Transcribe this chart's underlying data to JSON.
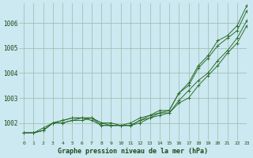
{
  "bg_color": "#cce8f0",
  "grid_color": "#99bbaa",
  "line_color": "#2d6e2d",
  "text_color": "#1a4a1a",
  "xlabel": "Graphe pression niveau de la mer (hPa)",
  "ylim": [
    1001.3,
    1006.8
  ],
  "xlim": [
    -0.5,
    23
  ],
  "yticks": [
    1002,
    1003,
    1004,
    1005,
    1006
  ],
  "xticks": [
    0,
    1,
    2,
    3,
    4,
    5,
    6,
    7,
    8,
    9,
    10,
    11,
    12,
    13,
    14,
    15,
    16,
    17,
    18,
    19,
    20,
    21,
    22,
    23
  ],
  "series": [
    [
      1001.6,
      1001.6,
      1001.7,
      1002.0,
      1002.0,
      1002.1,
      1002.1,
      1002.2,
      1002.0,
      1001.9,
      1001.9,
      1001.9,
      1002.1,
      1002.2,
      1002.3,
      1002.4,
      1002.8,
      1003.0,
      1003.5,
      1003.9,
      1004.3,
      1004.8,
      1005.2,
      1005.9
    ],
    [
      1001.6,
      1001.6,
      1001.7,
      1002.0,
      1002.0,
      1002.1,
      1002.2,
      1002.2,
      1001.9,
      1001.9,
      1001.9,
      1001.9,
      1002.0,
      1002.2,
      1002.4,
      1002.4,
      1002.9,
      1003.3,
      1003.7,
      1004.0,
      1004.5,
      1004.9,
      1005.4,
      1006.1
    ],
    [
      1001.6,
      1001.6,
      1001.7,
      1002.0,
      1002.1,
      1002.2,
      1002.2,
      1002.1,
      1001.9,
      1001.9,
      1001.9,
      1001.9,
      1002.1,
      1002.3,
      1002.4,
      1002.5,
      1003.2,
      1003.5,
      1004.2,
      1004.6,
      1005.1,
      1005.4,
      1005.7,
      1006.5
    ],
    [
      1001.6,
      1001.6,
      1001.8,
      1002.0,
      1002.1,
      1002.2,
      1002.2,
      1002.2,
      1002.0,
      1002.0,
      1001.9,
      1002.0,
      1002.2,
      1002.3,
      1002.5,
      1002.5,
      1003.2,
      1003.6,
      1004.3,
      1004.7,
      1005.3,
      1005.5,
      1005.9,
      1006.7
    ]
  ]
}
